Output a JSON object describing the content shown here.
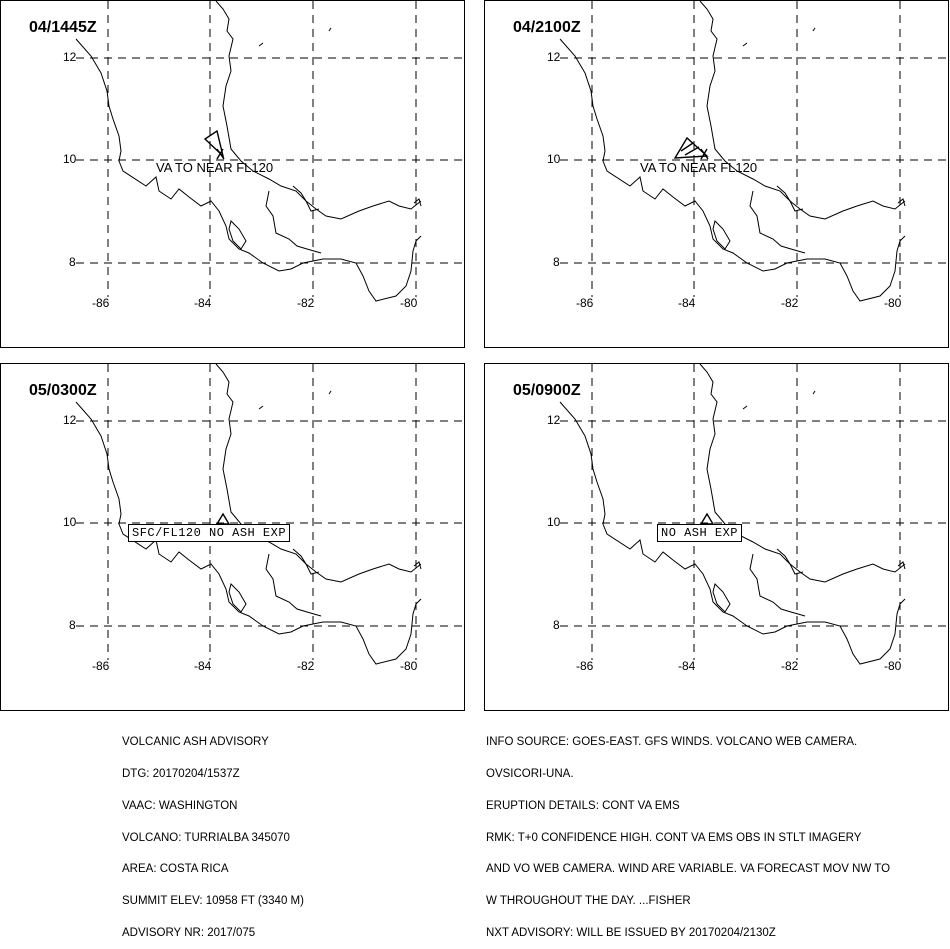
{
  "panels": [
    {
      "title": "04/1445Z",
      "area_label": "VA TO NEAR FL120",
      "box_label": ""
    },
    {
      "title": "04/2100Z",
      "area_label": "VA TO NEAR FL120",
      "box_label": ""
    },
    {
      "title": "05/0300Z",
      "area_label": "",
      "box_label": "SFC/FL120  NO ASH EXP"
    },
    {
      "title": "05/0900Z",
      "area_label": "",
      "box_label": "NO ASH EXP"
    }
  ],
  "axes": {
    "lon_labels": [
      "-86",
      "-84",
      "-82",
      "-80"
    ],
    "lat_labels": [
      "12",
      "10",
      "8"
    ]
  },
  "advisory_left": [
    "VOLCANIC ASH ADVISORY",
    "DTG: 20170204/1537Z",
    "VAAC: WASHINGTON",
    "VOLCANO: TURRIALBA 345070",
    "AREA: COSTA RICA",
    "SUMMIT ELEV: 10958 FT (3340 M)",
    "ADVISORY NR: 2017/075"
  ],
  "advisory_right": [
    "INFO SOURCE: GOES-EAST. GFS WINDS. VOLCANO WEB CAMERA.",
    "OVSICORI-UNA.",
    "ERUPTION DETAILS: CONT VA EMS",
    "RMK: T+0 CONFIDENCE HIGH. CONT VA EMS OBS IN STLT IMAGERY",
    "AND VO WEB CAMERA. WIND ARE VARIABLE. VA FORECAST MOV NW TO",
    "W THROUGHOUT THE DAY. ...FISHER",
    "NXT ADVISORY: WILL BE ISSUED BY 20170204/2130Z"
  ]
}
